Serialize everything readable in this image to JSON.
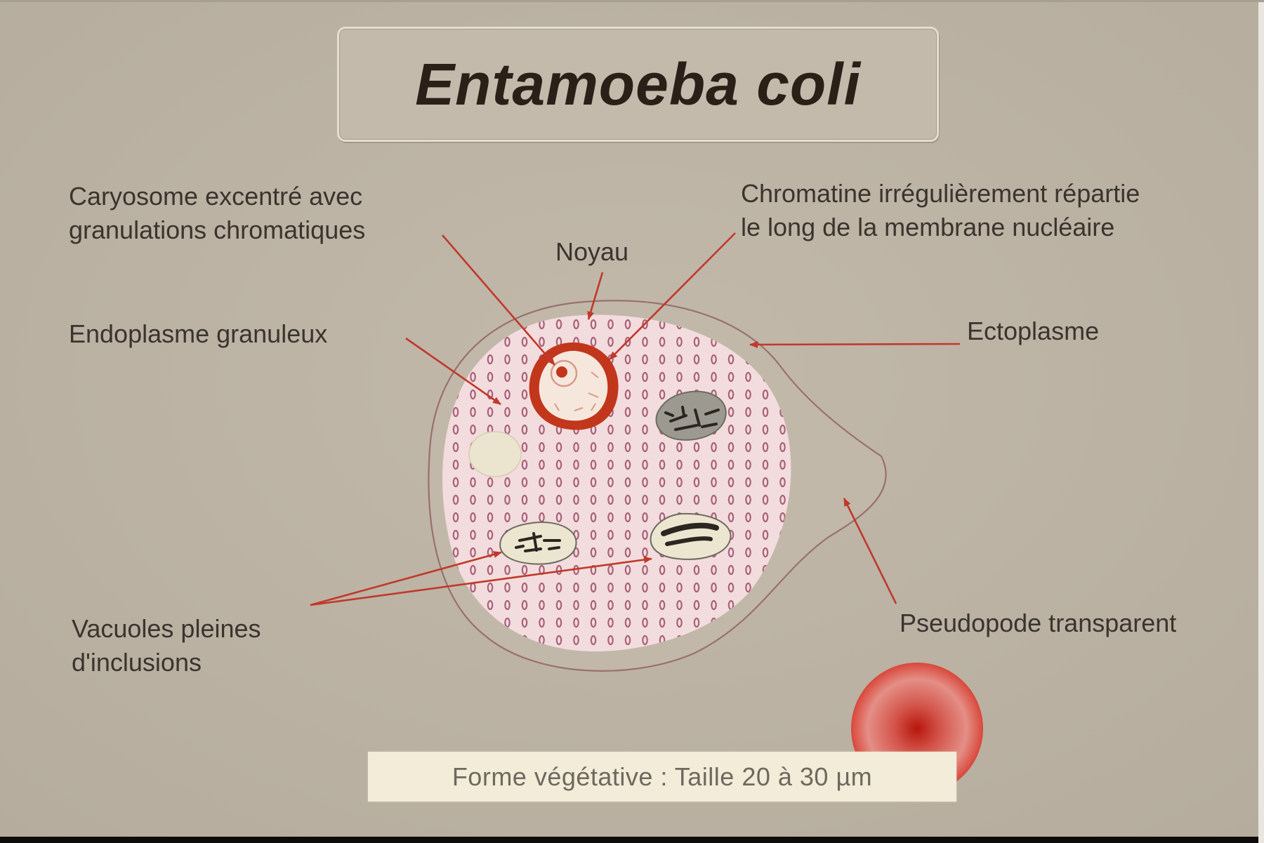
{
  "title": "Entamoeba coli",
  "labels": {
    "caryosome": [
      "Caryosome excentré avec",
      "granulations chromatiques"
    ],
    "chromatine": [
      "Chromatine irrégulièrement répartie",
      "le long de la membrane nucléaire"
    ],
    "noyau": "Noyau",
    "endoplasme": "Endoplasme granuleux",
    "ectoplasme": "Ectoplasme",
    "vacuoles": [
      "Vacuoles pleines",
      "d'inclusions"
    ],
    "pseudopode": "Pseudopode transparent"
  },
  "caption": "Forme végétative : Taille  20 à 30 µm",
  "colors": {
    "background": "#bdb4a5",
    "arrow": "#c0392b",
    "cell_outline": "#9a6f70",
    "endoplasm": "#f3dcdd",
    "granule": "#a8617a",
    "nucleus_ring": "#c2361c"
  }
}
